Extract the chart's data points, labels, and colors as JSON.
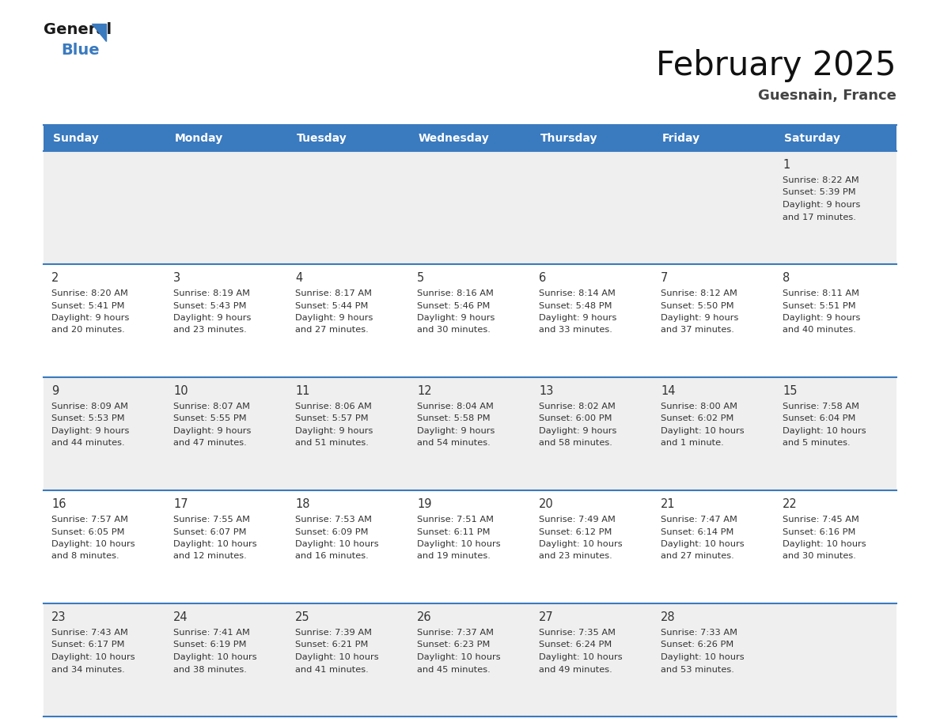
{
  "title": "February 2025",
  "subtitle": "Guesnain, France",
  "header_bg": "#3a7abf",
  "header_text": "#ffffff",
  "day_names": [
    "Sunday",
    "Monday",
    "Tuesday",
    "Wednesday",
    "Thursday",
    "Friday",
    "Saturday"
  ],
  "bg_color": "#ffffff",
  "cell_bg_gray": "#efefef",
  "cell_bg_white": "#ffffff",
  "border_color": "#3a7abf",
  "day_num_color": "#333333",
  "text_color": "#333333",
  "calendar": [
    [
      null,
      null,
      null,
      null,
      null,
      null,
      {
        "day": "1",
        "sunrise": "8:22 AM",
        "sunset": "5:39 PM",
        "daylight": "9 hours",
        "daylight2": "and 17 minutes."
      }
    ],
    [
      {
        "day": "2",
        "sunrise": "8:20 AM",
        "sunset": "5:41 PM",
        "daylight": "9 hours",
        "daylight2": "and 20 minutes."
      },
      {
        "day": "3",
        "sunrise": "8:19 AM",
        "sunset": "5:43 PM",
        "daylight": "9 hours",
        "daylight2": "and 23 minutes."
      },
      {
        "day": "4",
        "sunrise": "8:17 AM",
        "sunset": "5:44 PM",
        "daylight": "9 hours",
        "daylight2": "and 27 minutes."
      },
      {
        "day": "5",
        "sunrise": "8:16 AM",
        "sunset": "5:46 PM",
        "daylight": "9 hours",
        "daylight2": "and 30 minutes."
      },
      {
        "day": "6",
        "sunrise": "8:14 AM",
        "sunset": "5:48 PM",
        "daylight": "9 hours",
        "daylight2": "and 33 minutes."
      },
      {
        "day": "7",
        "sunrise": "8:12 AM",
        "sunset": "5:50 PM",
        "daylight": "9 hours",
        "daylight2": "and 37 minutes."
      },
      {
        "day": "8",
        "sunrise": "8:11 AM",
        "sunset": "5:51 PM",
        "daylight": "9 hours",
        "daylight2": "and 40 minutes."
      }
    ],
    [
      {
        "day": "9",
        "sunrise": "8:09 AM",
        "sunset": "5:53 PM",
        "daylight": "9 hours",
        "daylight2": "and 44 minutes."
      },
      {
        "day": "10",
        "sunrise": "8:07 AM",
        "sunset": "5:55 PM",
        "daylight": "9 hours",
        "daylight2": "and 47 minutes."
      },
      {
        "day": "11",
        "sunrise": "8:06 AM",
        "sunset": "5:57 PM",
        "daylight": "9 hours",
        "daylight2": "and 51 minutes."
      },
      {
        "day": "12",
        "sunrise": "8:04 AM",
        "sunset": "5:58 PM",
        "daylight": "9 hours",
        "daylight2": "and 54 minutes."
      },
      {
        "day": "13",
        "sunrise": "8:02 AM",
        "sunset": "6:00 PM",
        "daylight": "9 hours",
        "daylight2": "and 58 minutes."
      },
      {
        "day": "14",
        "sunrise": "8:00 AM",
        "sunset": "6:02 PM",
        "daylight": "10 hours",
        "daylight2": "and 1 minute."
      },
      {
        "day": "15",
        "sunrise": "7:58 AM",
        "sunset": "6:04 PM",
        "daylight": "10 hours",
        "daylight2": "and 5 minutes."
      }
    ],
    [
      {
        "day": "16",
        "sunrise": "7:57 AM",
        "sunset": "6:05 PM",
        "daylight": "10 hours",
        "daylight2": "and 8 minutes."
      },
      {
        "day": "17",
        "sunrise": "7:55 AM",
        "sunset": "6:07 PM",
        "daylight": "10 hours",
        "daylight2": "and 12 minutes."
      },
      {
        "day": "18",
        "sunrise": "7:53 AM",
        "sunset": "6:09 PM",
        "daylight": "10 hours",
        "daylight2": "and 16 minutes."
      },
      {
        "day": "19",
        "sunrise": "7:51 AM",
        "sunset": "6:11 PM",
        "daylight": "10 hours",
        "daylight2": "and 19 minutes."
      },
      {
        "day": "20",
        "sunrise": "7:49 AM",
        "sunset": "6:12 PM",
        "daylight": "10 hours",
        "daylight2": "and 23 minutes."
      },
      {
        "day": "21",
        "sunrise": "7:47 AM",
        "sunset": "6:14 PM",
        "daylight": "10 hours",
        "daylight2": "and 27 minutes."
      },
      {
        "day": "22",
        "sunrise": "7:45 AM",
        "sunset": "6:16 PM",
        "daylight": "10 hours",
        "daylight2": "and 30 minutes."
      }
    ],
    [
      {
        "day": "23",
        "sunrise": "7:43 AM",
        "sunset": "6:17 PM",
        "daylight": "10 hours",
        "daylight2": "and 34 minutes."
      },
      {
        "day": "24",
        "sunrise": "7:41 AM",
        "sunset": "6:19 PM",
        "daylight": "10 hours",
        "daylight2": "and 38 minutes."
      },
      {
        "day": "25",
        "sunrise": "7:39 AM",
        "sunset": "6:21 PM",
        "daylight": "10 hours",
        "daylight2": "and 41 minutes."
      },
      {
        "day": "26",
        "sunrise": "7:37 AM",
        "sunset": "6:23 PM",
        "daylight": "10 hours",
        "daylight2": "and 45 minutes."
      },
      {
        "day": "27",
        "sunrise": "7:35 AM",
        "sunset": "6:24 PM",
        "daylight": "10 hours",
        "daylight2": "and 49 minutes."
      },
      {
        "day": "28",
        "sunrise": "7:33 AM",
        "sunset": "6:26 PM",
        "daylight": "10 hours",
        "daylight2": "and 53 minutes."
      },
      null
    ]
  ],
  "logo_general_color": "#1a1a1a",
  "logo_blue_color": "#3a7abf",
  "logo_triangle_color": "#3a7abf"
}
